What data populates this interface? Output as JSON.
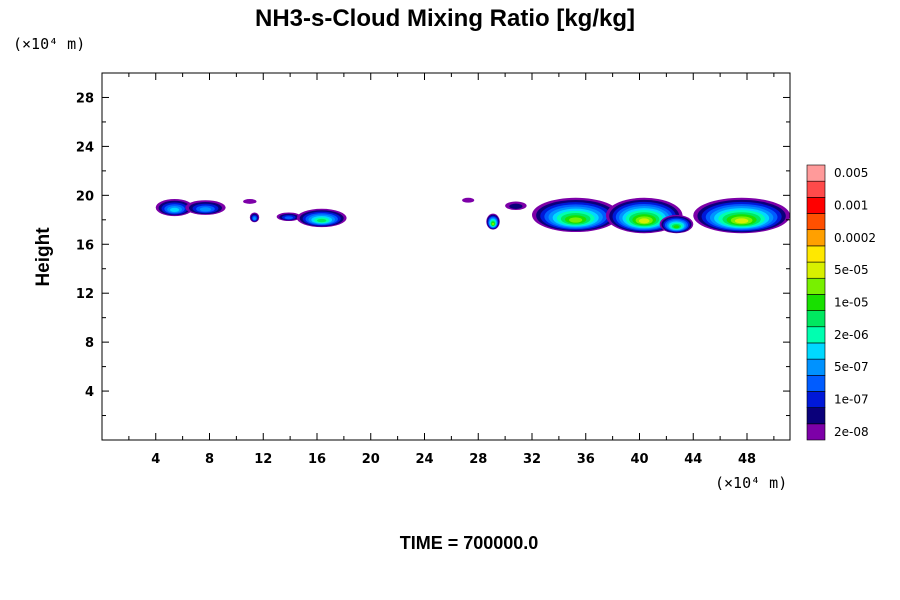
{
  "chart_data": {
    "type": "heatmap",
    "title": "NH3-s-Cloud Mixing Ratio [kg/kg]",
    "ylabel": "Height",
    "x_unit": "(×10⁴ m)",
    "y_unit": "(×10⁴ m)",
    "time_label": "TIME = 700000.0",
    "xlim": [
      0,
      51.2
    ],
    "ylim": [
      0,
      30
    ],
    "x_ticks": [
      "4",
      "8",
      "12",
      "16",
      "20",
      "24",
      "28",
      "32",
      "36",
      "40",
      "44",
      "48"
    ],
    "y_ticks": [
      "4",
      "8",
      "12",
      "16",
      "20",
      "24",
      "28"
    ],
    "colorbar": {
      "colors": [
        "#7d00a8",
        "#0a007a",
        "#0018d8",
        "#005cff",
        "#0092ff",
        "#00d8ff",
        "#00ffb0",
        "#00e860",
        "#18e000",
        "#78f000",
        "#d8f000",
        "#ffe800",
        "#ffa000",
        "#ff5000",
        "#ff0000",
        "#ff4a4a",
        "#ff9a9a"
      ],
      "labels": [
        "2e-08",
        "1e-07",
        "5e-07",
        "2e-06",
        "1e-05",
        "5e-05",
        "0.0002",
        "0.001",
        "0.005"
      ]
    },
    "cloud_patches": [
      {
        "x": [
          4.0,
          6.8
        ],
        "y": [
          18.3,
          19.7
        ],
        "peak": 5
      },
      {
        "x": [
          6.2,
          9.2
        ],
        "y": [
          18.4,
          19.6
        ],
        "peak": 4
      },
      {
        "x": [
          10.5,
          11.5
        ],
        "y": [
          19.3,
          19.7
        ],
        "peak": 0
      },
      {
        "x": [
          11.0,
          11.7
        ],
        "y": [
          17.8,
          18.6
        ],
        "peak": 4
      },
      {
        "x": [
          13.0,
          14.8
        ],
        "y": [
          17.9,
          18.6
        ],
        "peak": 3
      },
      {
        "x": [
          14.5,
          18.2
        ],
        "y": [
          17.4,
          18.9
        ],
        "peak": 7
      },
      {
        "x": [
          26.8,
          27.7
        ],
        "y": [
          19.4,
          19.8
        ],
        "peak": 0
      },
      {
        "x": [
          28.6,
          29.6
        ],
        "y": [
          17.2,
          18.5
        ],
        "peak": 9
      },
      {
        "x": [
          30.0,
          31.6
        ],
        "y": [
          18.8,
          19.5
        ],
        "peak": 1
      },
      {
        "x": [
          32.0,
          38.5
        ],
        "y": [
          17.0,
          19.8
        ],
        "peak": 9
      },
      {
        "x": [
          37.5,
          43.2
        ],
        "y": [
          16.9,
          19.8
        ],
        "peak": 10
      },
      {
        "x": [
          41.5,
          44.0
        ],
        "y": [
          16.9,
          18.4
        ],
        "peak": 8
      },
      {
        "x": [
          44.0,
          51.2
        ],
        "y": [
          16.9,
          19.8
        ],
        "peak": 10
      }
    ]
  }
}
